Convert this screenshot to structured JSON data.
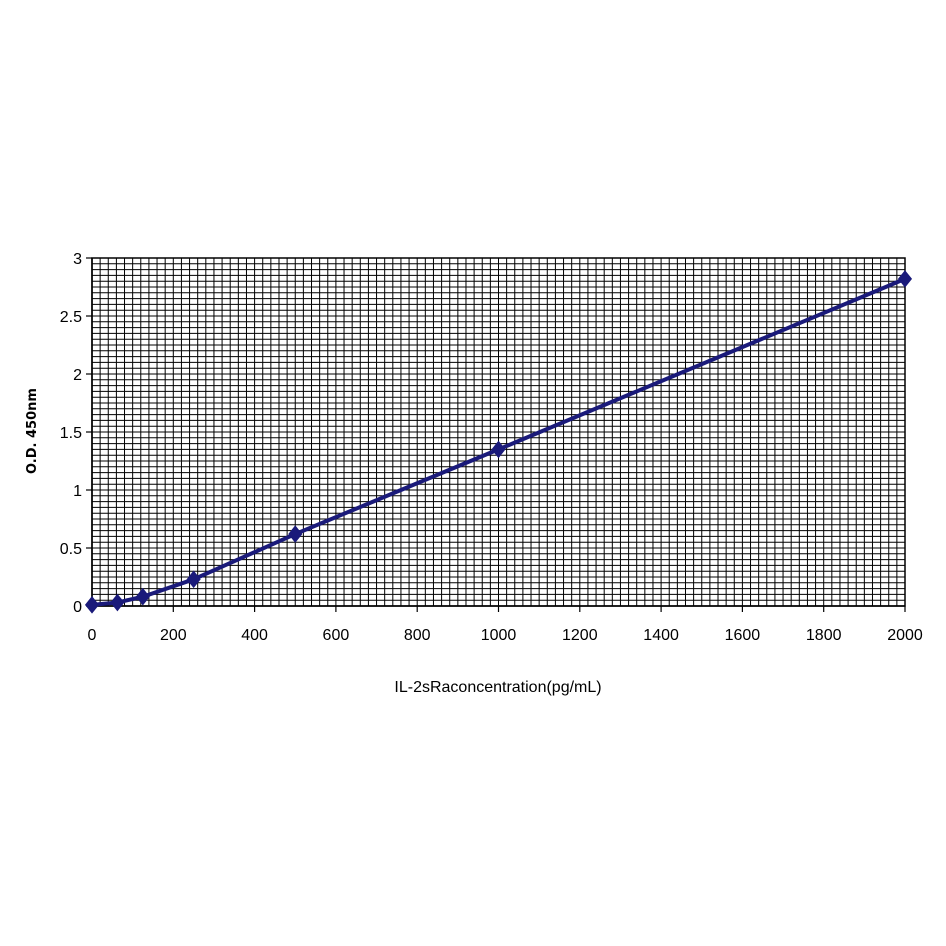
{
  "chart_data": {
    "type": "line",
    "title": "",
    "xlabel": "IL-2sRaconcentration(pg/mL)",
    "ylabel": "O.D. 450nm",
    "xlim": [
      0,
      2000
    ],
    "ylim": [
      0,
      3
    ],
    "x_ticks": [
      "0",
      "200",
      "400",
      "600",
      "800",
      "1000",
      "1200",
      "1400",
      "1600",
      "1800",
      "2000"
    ],
    "y_ticks": [
      "0",
      "0.5",
      "1",
      "1.5",
      "2",
      "2.5",
      "3"
    ],
    "grid": true,
    "legend": "none",
    "series": [
      {
        "color": "#1a1a7a",
        "marker": "diamond",
        "x": [
          0,
          62.5,
          125,
          250,
          500,
          1000,
          2000
        ],
        "y": [
          0.01,
          0.03,
          0.08,
          0.23,
          0.62,
          1.35,
          2.82
        ]
      }
    ]
  }
}
